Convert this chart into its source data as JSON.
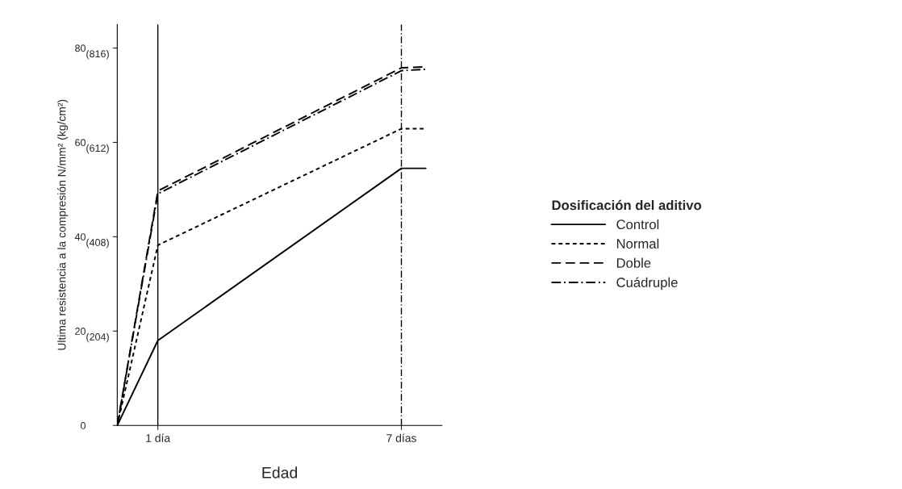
{
  "chart_data": {
    "type": "line",
    "xlabel": "Edad",
    "ylabel": "Ultima resistencia a la compresión N/mm² (kg/cm²)",
    "legend_title": "Dosificación del aditivo",
    "x": [
      0,
      1,
      7,
      7.6
    ],
    "series": [
      {
        "name": "Control",
        "color": "#000000",
        "line_style": "solid",
        "values": [
          0,
          18,
          54.5,
          54.5
        ]
      },
      {
        "name": "Normal",
        "color": "#000000",
        "line_style": "dotted",
        "values": [
          0,
          38.2,
          62.9,
          62.9
        ]
      },
      {
        "name": "Doble",
        "color": "#000000",
        "line_style": "dashed",
        "values": [
          0,
          49.7,
          75.8,
          76
        ]
      },
      {
        "name": "Cuádruple",
        "color": "#000000",
        "line_style": "dashdot",
        "values": [
          0,
          49.1,
          75.2,
          75.5
        ]
      }
    ],
    "xlim": [
      0,
      8
    ],
    "ylim": [
      0,
      85
    ],
    "xticks": [
      {
        "value": 1,
        "label": "1 día"
      },
      {
        "value": 7,
        "label": "7 días"
      }
    ],
    "yticks": [
      0,
      20,
      40,
      60,
      80
    ],
    "y2lim": [
      0,
      867
    ],
    "y2ticks": [
      {
        "value": 204,
        "label": "(204)"
      },
      {
        "value": 408,
        "label": "(408)"
      },
      {
        "value": 612,
        "label": "(612)"
      },
      {
        "value": 816,
        "label": "(816)"
      }
    ],
    "ref_lines": [
      {
        "axis": "x",
        "value": 1,
        "label": null,
        "color": "#000000",
        "line_style": "solid"
      },
      {
        "axis": "x",
        "value": 7,
        "label": null,
        "color": "#000000",
        "line_style": "dashdot"
      }
    ],
    "grid": false,
    "legend": "right",
    "marker": "none"
  }
}
